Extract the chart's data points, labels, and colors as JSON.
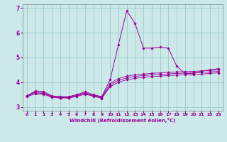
{
  "xlabel": "Windchill (Refroidissement éolien,°C)",
  "background_color": "#cce8e8",
  "grid_color": "#99cccc",
  "line_color": "#990099",
  "xlim": [
    -0.5,
    23.5
  ],
  "ylim": [
    2.85,
    7.15
  ],
  "xticks": [
    0,
    1,
    2,
    3,
    4,
    5,
    6,
    7,
    8,
    9,
    10,
    11,
    12,
    13,
    14,
    15,
    16,
    17,
    18,
    19,
    20,
    21,
    22,
    23
  ],
  "yticks": [
    3,
    4,
    5,
    6,
    7
  ],
  "curve_main": [
    3.45,
    3.65,
    3.63,
    3.45,
    3.42,
    3.42,
    3.5,
    3.62,
    3.5,
    3.42,
    4.1,
    5.52,
    6.88,
    6.38,
    5.38,
    5.38,
    5.42,
    5.38,
    4.65,
    4.35,
    4.35,
    4.45,
    4.5,
    4.55
  ],
  "curve2": [
    3.45,
    3.6,
    3.58,
    3.43,
    3.4,
    3.4,
    3.47,
    3.58,
    3.47,
    3.4,
    3.95,
    4.15,
    4.25,
    4.3,
    4.33,
    4.36,
    4.38,
    4.4,
    4.42,
    4.43,
    4.44,
    4.46,
    4.48,
    4.5
  ],
  "curve3": [
    3.44,
    3.57,
    3.55,
    3.41,
    3.38,
    3.38,
    3.45,
    3.55,
    3.45,
    3.38,
    3.88,
    4.08,
    4.18,
    4.24,
    4.27,
    4.3,
    4.32,
    4.34,
    4.36,
    4.37,
    4.38,
    4.4,
    4.42,
    4.44
  ],
  "curve4": [
    3.42,
    3.53,
    3.52,
    3.39,
    3.36,
    3.36,
    3.43,
    3.52,
    3.43,
    3.35,
    3.82,
    4.0,
    4.1,
    4.16,
    4.2,
    4.23,
    4.25,
    4.27,
    4.29,
    4.3,
    4.31,
    4.33,
    4.36,
    4.38
  ]
}
